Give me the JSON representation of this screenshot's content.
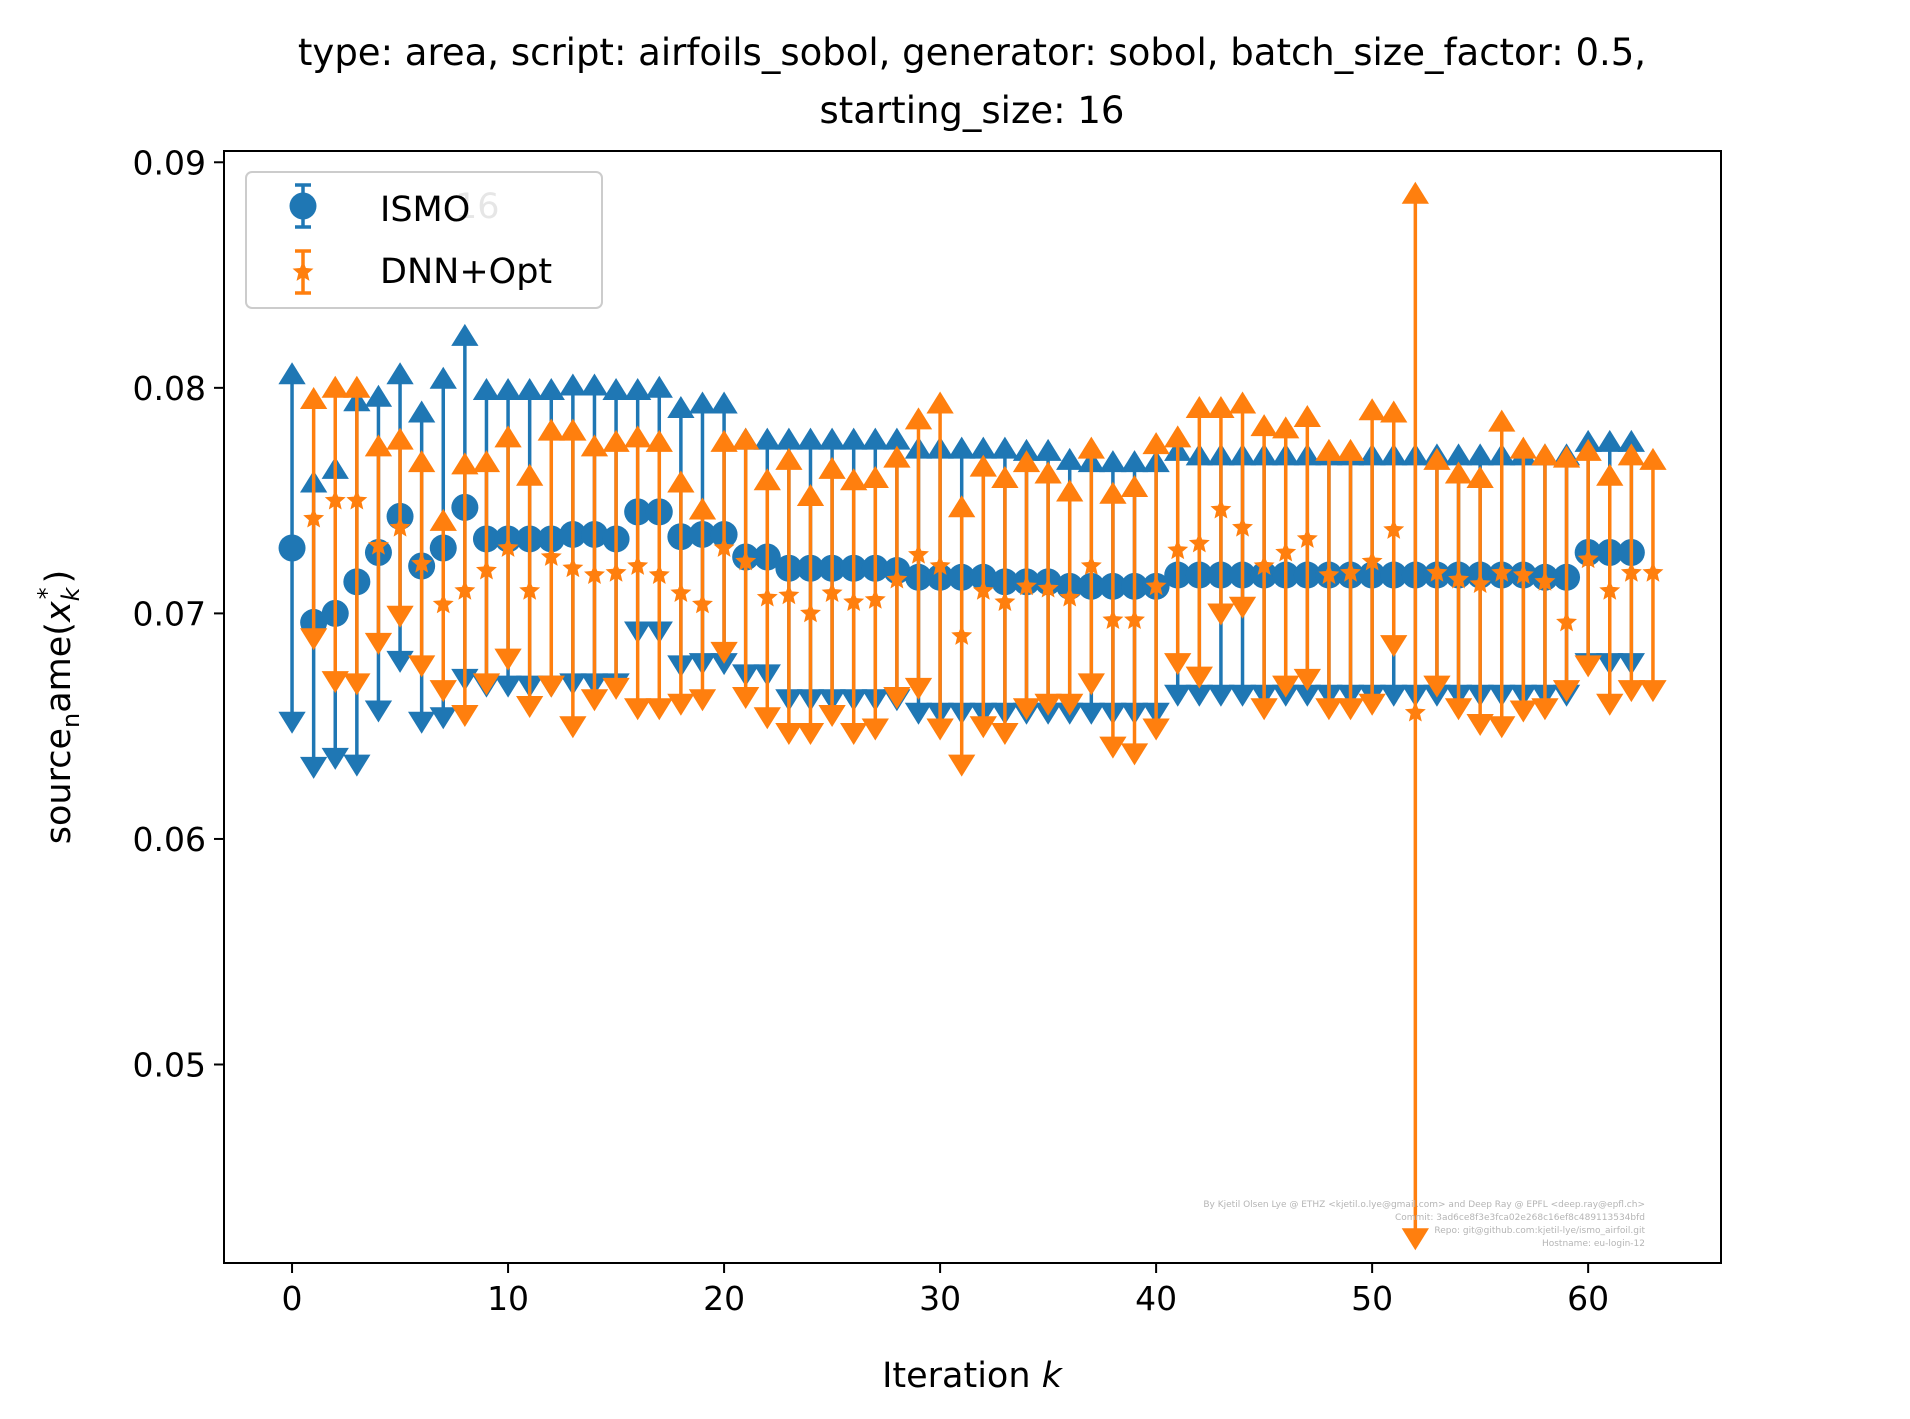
{
  "chart_data": {
    "type": "scatter",
    "title_line1": "type: area, script: airfoils_sobol, generator: sobol, batch_size_factor: 0.5,",
    "title_line2": "starting_size: 16",
    "xlabel_text": "Iteration ",
    "xlabel_var": "k",
    "ylabel_base": "source",
    "ylabel_sub": "n",
    "ylabel_rest": "ame(",
    "ylabel_var": "x",
    "ylabel_var_sub": "k",
    "ylabel_var_sup": "*",
    "ylabel_close": ")",
    "xlim": [
      -3.15,
      66.15
    ],
    "ylim": [
      0.0412,
      0.0905
    ],
    "xticks": [
      0,
      10,
      20,
      30,
      40,
      50,
      60
    ],
    "yticks": [
      0.05,
      0.06,
      0.07,
      0.08,
      0.09
    ],
    "ytick_labels": [
      "0.05",
      "0.06",
      "0.07",
      "0.08",
      "0.09"
    ],
    "grid": false,
    "legend_position": "upper-left",
    "series": [
      {
        "name": "ISMO",
        "color": "#1f77b4",
        "marker": "circle",
        "x_start": 0,
        "mean": [
          0.0729,
          0.0696,
          0.07,
          0.0714,
          0.0727,
          0.0743,
          0.0721,
          0.0729,
          0.0747,
          0.0733,
          0.0733,
          0.0733,
          0.0733,
          0.0735,
          0.0735,
          0.0733,
          0.0745,
          0.0745,
          0.0734,
          0.0735,
          0.0735,
          0.0725,
          0.0725,
          0.072,
          0.072,
          0.072,
          0.072,
          0.072,
          0.0719,
          0.0716,
          0.0716,
          0.0716,
          0.0716,
          0.0714,
          0.0714,
          0.0714,
          0.0712,
          0.0712,
          0.0712,
          0.0712,
          0.0712,
          0.0717,
          0.0717,
          0.0717,
          0.0717,
          0.0717,
          0.0717,
          0.0717,
          0.0717,
          0.0717,
          0.0717,
          0.0717,
          0.0717,
          0.0717,
          0.0717,
          0.0717,
          0.0717,
          0.0717,
          0.0716,
          0.0716,
          0.0727,
          0.0727,
          0.0727
        ],
        "lower": [
          0.0652,
          0.0632,
          0.0636,
          0.0633,
          0.0657,
          0.0679,
          0.0652,
          0.0654,
          0.0671,
          0.0668,
          0.0668,
          0.0668,
          0.0668,
          0.0669,
          0.0669,
          0.0669,
          0.0692,
          0.0692,
          0.0677,
          0.0678,
          0.0678,
          0.0673,
          0.0673,
          0.0662,
          0.0662,
          0.0662,
          0.0662,
          0.0662,
          0.0662,
          0.0656,
          0.0656,
          0.0656,
          0.0656,
          0.0656,
          0.0656,
          0.0656,
          0.0656,
          0.0656,
          0.0656,
          0.0656,
          0.0656,
          0.0664,
          0.0664,
          0.0664,
          0.0664,
          0.0664,
          0.0664,
          0.0664,
          0.0664,
          0.0664,
          0.0664,
          0.0664,
          0.0664,
          0.0664,
          0.0664,
          0.0664,
          0.0664,
          0.0664,
          0.0664,
          0.0664,
          0.0678,
          0.0678,
          0.0678
        ],
        "upper": [
          0.0806,
          0.0758,
          0.0764,
          0.0794,
          0.0796,
          0.0806,
          0.0789,
          0.0804,
          0.0823,
          0.0799,
          0.0799,
          0.0799,
          0.0799,
          0.0801,
          0.0801,
          0.0799,
          0.0799,
          0.08,
          0.0791,
          0.0793,
          0.0793,
          0.0777,
          0.0777,
          0.0777,
          0.0777,
          0.0777,
          0.0777,
          0.0777,
          0.0777,
          0.0773,
          0.0773,
          0.0773,
          0.0773,
          0.0773,
          0.0772,
          0.0772,
          0.0768,
          0.0767,
          0.0767,
          0.0767,
          0.0767,
          0.0772,
          0.077,
          0.077,
          0.077,
          0.077,
          0.077,
          0.077,
          0.077,
          0.077,
          0.077,
          0.077,
          0.077,
          0.077,
          0.077,
          0.077,
          0.077,
          0.077,
          0.077,
          0.077,
          0.0776,
          0.0776,
          0.0776
        ]
      },
      {
        "name": "DNN+Opt",
        "color": "#ff7f0e",
        "marker": "star",
        "x_start": 1,
        "mean": [
          0.0742,
          0.075,
          0.075,
          0.073,
          0.0738,
          0.0722,
          0.0704,
          0.071,
          0.0719,
          0.0729,
          0.071,
          0.0725,
          0.072,
          0.0717,
          0.0718,
          0.0721,
          0.0717,
          0.0709,
          0.0704,
          0.0729,
          0.0723,
          0.0707,
          0.0708,
          0.07,
          0.0709,
          0.0705,
          0.0706,
          0.0715,
          0.0726,
          0.0721,
          0.069,
          0.071,
          0.0705,
          0.0712,
          0.0711,
          0.0707,
          0.0721,
          0.0697,
          0.0697,
          0.0712,
          0.0728,
          0.0731,
          0.0746,
          0.0738,
          0.0721,
          0.0727,
          0.0733,
          0.0717,
          0.0718,
          0.0723,
          0.0737,
          0.0656,
          0.0718,
          0.0715,
          0.0713,
          0.0718,
          0.0717,
          0.0714,
          0.0696,
          0.0724,
          0.071,
          0.0718,
          0.0718
        ],
        "lower": [
          0.0689,
          0.067,
          0.0669,
          0.0687,
          0.0699,
          0.0677,
          0.0666,
          0.0655,
          0.0669,
          0.068,
          0.0659,
          0.0668,
          0.065,
          0.0662,
          0.0667,
          0.0658,
          0.0658,
          0.066,
          0.0662,
          0.0683,
          0.0663,
          0.0654,
          0.0647,
          0.0647,
          0.0655,
          0.0647,
          0.0649,
          0.0663,
          0.0667,
          0.0649,
          0.0633,
          0.065,
          0.0647,
          0.0658,
          0.066,
          0.066,
          0.0669,
          0.0641,
          0.0638,
          0.0649,
          0.0678,
          0.0672,
          0.07,
          0.0703,
          0.0658,
          0.0668,
          0.0671,
          0.0658,
          0.0658,
          0.066,
          0.0686,
          0.0423,
          0.0668,
          0.0658,
          0.0651,
          0.065,
          0.0657,
          0.0658,
          0.0666,
          0.0677,
          0.066,
          0.0666,
          0.0666
        ],
        "upper": [
          0.0795,
          0.08,
          0.08,
          0.0774,
          0.0777,
          0.0767,
          0.0741,
          0.0766,
          0.0767,
          0.0778,
          0.0761,
          0.0781,
          0.0781,
          0.0774,
          0.0776,
          0.0778,
          0.0776,
          0.0758,
          0.0746,
          0.0776,
          0.0777,
          0.0759,
          0.0768,
          0.0752,
          0.0764,
          0.0759,
          0.076,
          0.0769,
          0.0786,
          0.0793,
          0.0747,
          0.0765,
          0.076,
          0.0767,
          0.0762,
          0.0754,
          0.0773,
          0.0753,
          0.0756,
          0.0775,
          0.0778,
          0.0791,
          0.0791,
          0.0793,
          0.0783,
          0.0782,
          0.0787,
          0.0772,
          0.0772,
          0.079,
          0.0789,
          0.0886,
          0.0768,
          0.0762,
          0.076,
          0.0785,
          0.0773,
          0.077,
          0.0769,
          0.0772,
          0.0761,
          0.077,
          0.0768
        ]
      }
    ]
  },
  "watermark": {
    "line1": "By Kjetil Olsen Lye @ ETHZ <kjetil.o.lye@gmail.com> and Deep Ray @ EPFL <deep.ray@epfl.ch>",
    "line2": "Commit: 3ad6ce8f3e3fca02e268c16ef8c489113534bfd",
    "line3": "Repo: git@github.com:kjetil-lye/ismo_airfoil.git",
    "line4": "Hostname: eu-login-12"
  },
  "legend_ghost_text": "16"
}
